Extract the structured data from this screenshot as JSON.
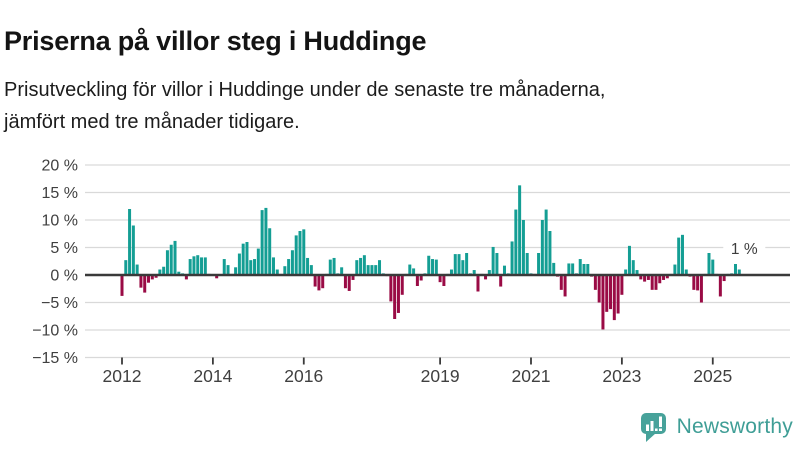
{
  "header": {
    "title": "Priserna på villor steg i Huddinge",
    "subtitle_lines": [
      "Prisutveckling för villor i Huddinge under de senaste tre månaderna,",
      "jämfört med tre månader tidigare."
    ]
  },
  "chart_data": {
    "type": "bar",
    "title": "Prisutveckling för villor i Huddinge",
    "unit": "%",
    "frequency": "monthly",
    "start": "2012-01",
    "end": "2025-08",
    "start_year": 2012,
    "values": [
      -3.8,
      2.7,
      12.0,
      9.0,
      1.9,
      -2.3,
      -3.2,
      -1.4,
      -0.8,
      -0.5,
      1.0,
      1.5,
      4.5,
      5.5,
      6.2,
      0.6,
      0.3,
      -0.8,
      2.9,
      3.4,
      3.6,
      3.2,
      3.2,
      0.2,
      0.1,
      -0.6,
      0.1,
      2.9,
      1.8,
      0.2,
      1.4,
      3.9,
      5.7,
      6.0,
      2.7,
      2.9,
      4.8,
      11.8,
      12.2,
      8.5,
      3.2,
      1.0,
      0.2,
      1.6,
      2.9,
      4.5,
      7.2,
      8.0,
      8.3,
      3.1,
      1.8,
      -2.1,
      -2.8,
      -2.4,
      0.2,
      2.8,
      3.1,
      0.3,
      1.4,
      -2.4,
      -2.9,
      -0.9,
      2.7,
      3.1,
      3.6,
      1.8,
      1.8,
      1.8,
      2.7,
      0.3,
      -0.2,
      -4.8,
      -8.0,
      -6.9,
      -3.6,
      0.2,
      1.9,
      1.2,
      -2.0,
      -1.0,
      0.3,
      3.5,
      2.9,
      2.8,
      -1.3,
      -2.0,
      0.2,
      1.0,
      3.8,
      3.8,
      2.7,
      4.0,
      0.3,
      0.9,
      -3.0,
      0.2,
      -0.8,
      0.9,
      5.1,
      4.0,
      -2.1,
      1.7,
      0.3,
      6.1,
      11.9,
      16.3,
      10.0,
      4.0,
      0.3,
      0.2,
      4.0,
      10.0,
      11.9,
      8.0,
      2.2,
      -0.3,
      -2.7,
      -3.9,
      2.1,
      2.1,
      0.3,
      2.9,
      2.0,
      2.0,
      -0.3,
      -2.7,
      -5.0,
      -9.9,
      -6.7,
      -6.2,
      -8.2,
      -7.0,
      -3.6,
      1.0,
      5.3,
      2.7,
      0.9,
      -0.8,
      -1.2,
      -0.9,
      -2.7,
      -2.7,
      -1.5,
      -0.9,
      -0.6,
      0.2,
      1.9,
      6.8,
      7.3,
      1.0,
      -0.3,
      -2.7,
      -2.8,
      -5.0,
      0.2,
      4.0,
      2.8,
      0.2,
      -3.9,
      -1.1,
      0.2,
      0.3,
      2.0,
      1.0
    ],
    "ylim": [
      -15,
      20
    ],
    "y_ticks": [
      20,
      15,
      10,
      5,
      0,
      -5,
      -10,
      -15
    ],
    "y_tick_suffix": " %",
    "x_tick_years": [
      2012,
      2014,
      2016,
      2019,
      2021,
      2023,
      2025
    ],
    "grid": true,
    "legend": "none",
    "annotation": {
      "text": "1 %",
      "attach": "last-bar"
    },
    "colors": {
      "positive": "#149e94",
      "negative": "#9a0b45"
    }
  },
  "footer": {
    "brand": "Newsworthy"
  }
}
